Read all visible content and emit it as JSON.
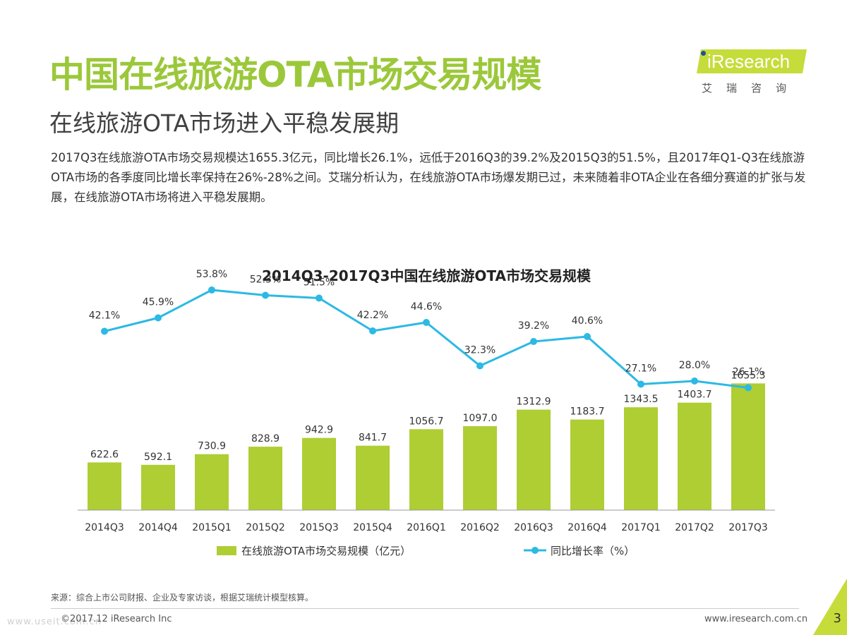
{
  "header": {
    "title": "中国在线旅游OTA市场交易规模",
    "subtitle": "在线旅游OTA市场进入平稳发展期",
    "description": "2017Q3在线旅游OTA市场交易规模达1655.3亿元，同比增长26.1%，远低于2016Q3的39.2%及2015Q3的51.5%，且2017年Q1-Q3在线旅游OTA市场的各季度同比增长率保持在26%-28%之间。艾瑞分析认为，在线旅游OTA市场爆发期已过，未来随着非OTA企业在各细分赛道的扩张与发展，在线旅游OTA市场将进入平稳发展期。"
  },
  "logo": {
    "brand": "iResearch",
    "chinese": "艾瑞咨询"
  },
  "chart_data": {
    "type": "bar",
    "title": "2014Q3-2017Q3中国在线旅游OTA市场交易规模",
    "categories": [
      "2014Q3",
      "2014Q4",
      "2015Q1",
      "2015Q2",
      "2015Q3",
      "2015Q4",
      "2016Q1",
      "2016Q2",
      "2016Q3",
      "2016Q4",
      "2017Q1",
      "2017Q2",
      "2017Q3"
    ],
    "series": [
      {
        "name": "在线旅游OTA市场交易规模（亿元）",
        "type": "bar",
        "values": [
          622.6,
          592.1,
          730.9,
          828.9,
          942.9,
          841.7,
          1056.7,
          1097.0,
          1312.9,
          1183.7,
          1343.5,
          1403.7,
          1655.3
        ],
        "labels": [
          "622.6",
          "592.1",
          "730.9",
          "828.9",
          "942.9",
          "841.7",
          "1056.7",
          "1097.0",
          "1312.9",
          "1183.7",
          "1343.5",
          "1403.7",
          "1655.3"
        ]
      },
      {
        "name": "同比增长率（%）",
        "type": "line",
        "values": [
          42.1,
          45.9,
          53.8,
          52.3,
          51.5,
          42.2,
          44.6,
          32.3,
          39.2,
          40.6,
          27.1,
          28.0,
          26.1
        ],
        "labels": [
          "42.1%",
          "45.9%",
          "53.8%",
          "52.3%",
          "51.5%",
          "42.2%",
          "44.6%",
          "32.3%",
          "39.2%",
          "40.6%",
          "27.1%",
          "28.0%",
          "26.1%"
        ]
      }
    ],
    "bar_ylim": [
      0,
      1900
    ],
    "line_ylim": [
      0,
      60
    ],
    "legend_position": "bottom",
    "grid": false,
    "colors": {
      "bar": "#aece34",
      "line": "#2cb9e4"
    }
  },
  "footer": {
    "source": "来源：综合上市公司财报、企业及专家访谈，根据艾瑞统计模型核算。",
    "copyright": "©2017.12 iResearch Inc",
    "website": "www.iresearch.com.cn",
    "page_number": "3",
    "watermark": "www.useit.com.cn"
  }
}
